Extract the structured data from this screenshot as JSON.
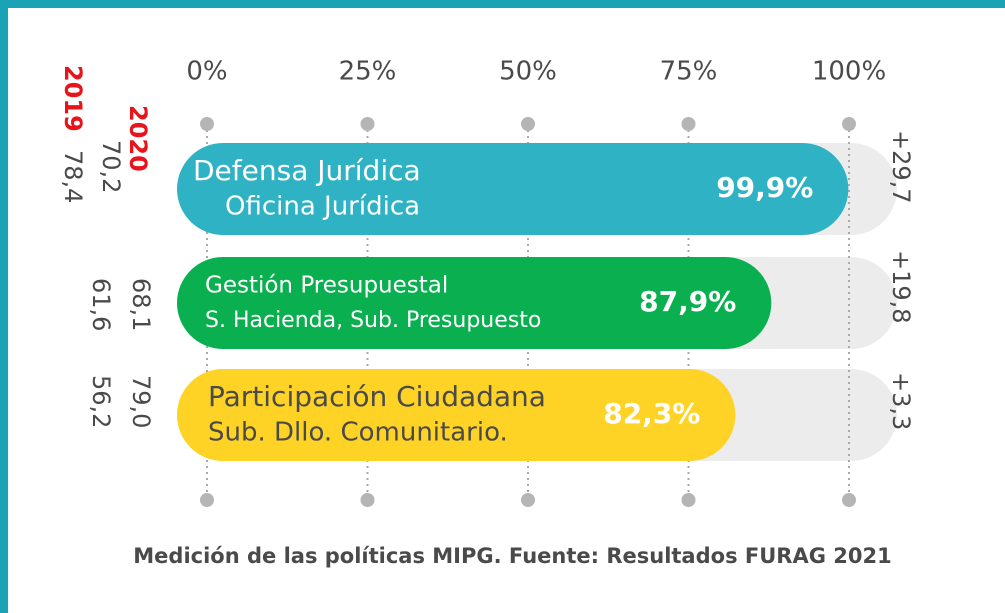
{
  "chart_data": {
    "type": "bar",
    "orientation": "horizontal",
    "categories": [
      "Defensa Jurídica",
      "Gestión Presupuestal",
      "Participación Ciudadana"
    ],
    "subcategories": [
      "Oficina Jurídica",
      "S. Hacienda, Sub. Presupuesto",
      "Sub. Dllo. Comunitario."
    ],
    "values": [
      99.9,
      87.9,
      82.3
    ],
    "value_labels": [
      "99,9%",
      "87,9%",
      "82,3%"
    ],
    "colors": [
      "#2fb3c4",
      "#0ab04f",
      "#fed326"
    ],
    "xlim": [
      0,
      100
    ],
    "xticks": [
      {
        "value": 0,
        "label": "0%"
      },
      {
        "value": 25,
        "label": "25%"
      },
      {
        "value": 50,
        "label": "50%"
      },
      {
        "value": 75,
        "label": "75%"
      },
      {
        "value": 100,
        "label": "100%"
      }
    ],
    "series": [
      {
        "name": "2019",
        "color": "#e8141b",
        "values": [
          78.4,
          61.6,
          56.2
        ],
        "value_labels": [
          "78,4",
          "61,6",
          "56,2"
        ]
      },
      {
        "name": "2020",
        "color": "#e8141b",
        "values": [
          70.2,
          68.1,
          79.0
        ],
        "value_labels": [
          "70,2",
          "68,1",
          "79,0"
        ]
      }
    ],
    "changes": {
      "values": [
        29.7,
        19.8,
        3.3
      ],
      "value_labels": [
        "+29,7",
        "+19,8",
        "+3,3"
      ]
    },
    "caption": "Medición de las  políticas MIPG. Fuente: Resultados FURAG 2021"
  }
}
